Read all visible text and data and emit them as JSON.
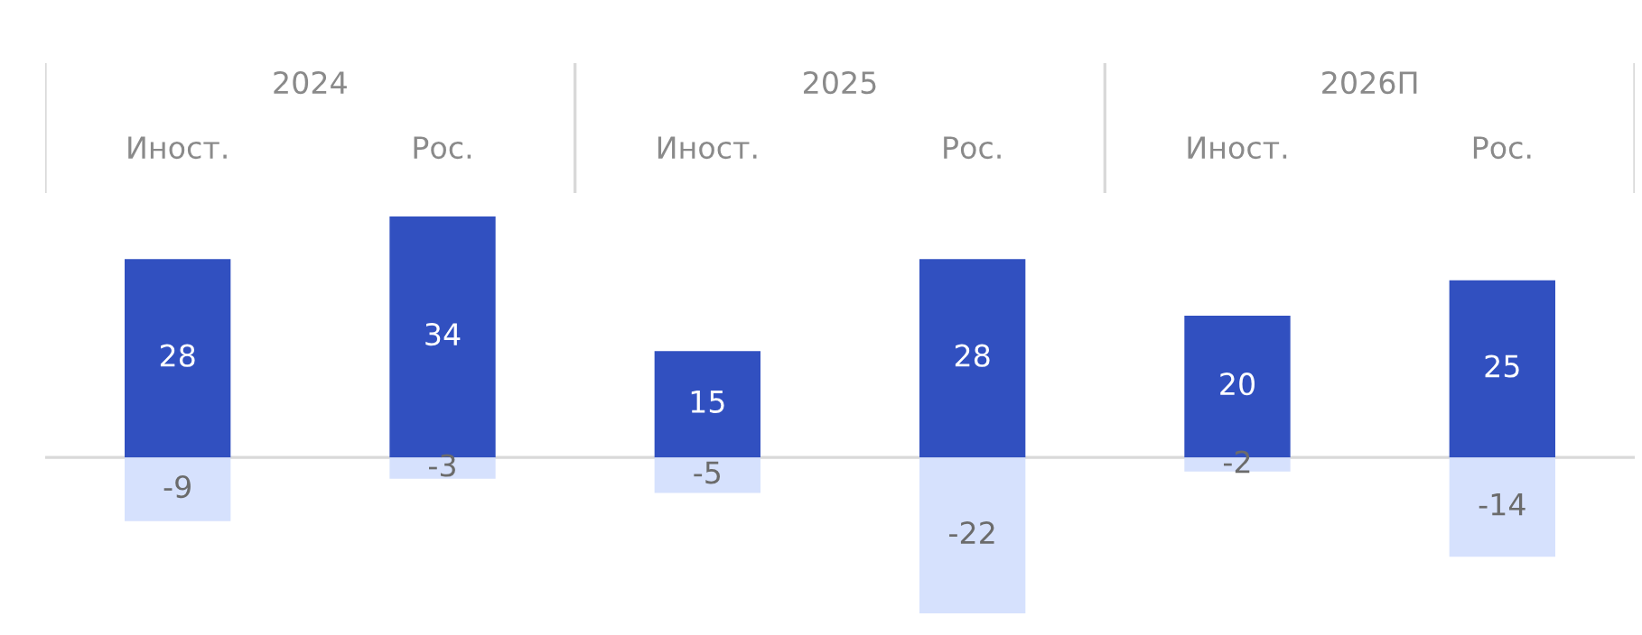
{
  "chart_data": {
    "type": "bar",
    "categories": [
      "Иност.",
      "Рос.",
      "Иност.",
      "Рос.",
      "Иност.",
      "Рос."
    ],
    "series": [
      {
        "color": "#3150c0",
        "values": [
          28,
          34,
          15,
          28,
          20,
          25
        ]
      },
      {
        "color": "#d6e1fd",
        "values": [
          -9,
          -3,
          -5,
          -22,
          -2,
          -14
        ]
      }
    ],
    "stacked": true,
    "data_labels": true,
    "annotations": [
      "2024",
      "2025",
      "2026П"
    ]
  }
}
